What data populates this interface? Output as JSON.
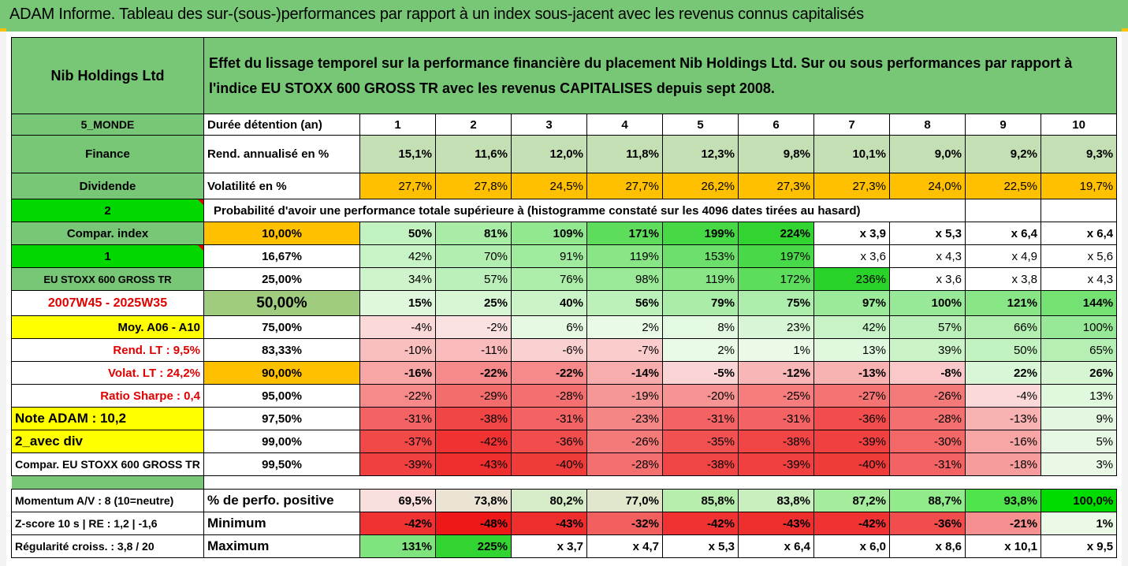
{
  "title": "ADAM Informe. Tableau des sur-(sous-)performances par rapport à un index sous-jacent avec les revenus connus capitalisés",
  "header": {
    "company": "Nib Holdings Ltd",
    "description_line1": "Effet du lissage temporel sur la performance financière du placement Nib Holdings Ltd. Sur ou sous performances par rapport à",
    "description_line2": "l'indice EU STOXX 600 GROSS TR avec les revenus CAPITALISES depuis sept 2008."
  },
  "colors": {
    "title_green": "#77c777",
    "header_green": "#77c777",
    "orange": "#ffc000",
    "yellow": "#ffff00",
    "bright_green": "#00d800",
    "label_red": "#e00000"
  },
  "rows": [
    {
      "left": "5_MONDE",
      "mid": "Durée détention (an)",
      "values": [
        "1",
        "2",
        "3",
        "4",
        "5",
        "6",
        "7",
        "8",
        "9",
        "10"
      ]
    },
    {
      "left": "Finance",
      "mid": "Rend. annualisé en %",
      "values": [
        "15,1%",
        "11,6%",
        "12,0%",
        "11,8%",
        "12,3%",
        "9,8%",
        "10,1%",
        "9,0%",
        "9,2%",
        "9,3%"
      ]
    },
    {
      "left": "Dividende",
      "mid": "Volatilité en %",
      "values": [
        "27,7%",
        "27,8%",
        "24,5%",
        "27,7%",
        "26,2%",
        "27,3%",
        "27,3%",
        "24,0%",
        "22,5%",
        "19,7%"
      ]
    },
    {
      "left": "2",
      "mid": "Probabilité d'avoir une performance totale supérieure à (histogramme constaté sur les 4096 dates tirées au hasard)"
    },
    {
      "left": "Compar. index",
      "mid": "10,00%",
      "values": [
        "50%",
        "81%",
        "109%",
        "171%",
        "199%",
        "224%",
        "x 3,9",
        "x 5,3",
        "x 6,4",
        "x 6,4"
      ]
    },
    {
      "left": "1",
      "mid": "16,67%",
      "values": [
        "42%",
        "70%",
        "91%",
        "119%",
        "153%",
        "197%",
        "x 3,6",
        "x 4,3",
        "x 4,9",
        "x 5,6"
      ]
    },
    {
      "left": "EU STOXX 600 GROSS TR",
      "mid": "25,00%",
      "values": [
        "34%",
        "57%",
        "76%",
        "98%",
        "119%",
        "172%",
        "236%",
        "x 3,6",
        "x 3,8",
        "x 4,3"
      ]
    },
    {
      "left": "2007W45 - 2025W35",
      "mid": "50,00%",
      "values": [
        "15%",
        "25%",
        "40%",
        "56%",
        "79%",
        "75%",
        "97%",
        "100%",
        "121%",
        "144%"
      ]
    },
    {
      "left": "Moy. A06 - A10",
      "mid": "75,00%",
      "values": [
        "-4%",
        "-2%",
        "6%",
        "2%",
        "8%",
        "23%",
        "42%",
        "57%",
        "66%",
        "100%"
      ]
    },
    {
      "left": "Rend. LT :   9,5%",
      "mid": "83,33%",
      "values": [
        "-10%",
        "-11%",
        "-6%",
        "-7%",
        "2%",
        "1%",
        "13%",
        "39%",
        "50%",
        "65%"
      ]
    },
    {
      "left": "Volat. LT :   24,2%",
      "mid": "90,00%",
      "values": [
        "-16%",
        "-22%",
        "-22%",
        "-14%",
        "-5%",
        "-12%",
        "-13%",
        "-8%",
        "22%",
        "26%"
      ]
    },
    {
      "left": "Ratio Sharpe :   0,4",
      "mid": "95,00%",
      "values": [
        "-22%",
        "-29%",
        "-28%",
        "-19%",
        "-20%",
        "-25%",
        "-27%",
        "-26%",
        "-4%",
        "13%"
      ]
    },
    {
      "left": "Note ADAM : 10,2",
      "mid": "97,50%",
      "values": [
        "-31%",
        "-38%",
        "-31%",
        "-23%",
        "-31%",
        "-31%",
        "-36%",
        "-28%",
        "-13%",
        "9%"
      ]
    },
    {
      "left": "2_avec div",
      "mid": "99,00%",
      "values": [
        "-37%",
        "-42%",
        "-36%",
        "-26%",
        "-35%",
        "-38%",
        "-39%",
        "-30%",
        "-16%",
        "5%"
      ]
    },
    {
      "left": "Compar. EU STOXX 600 GROSS TR",
      "mid": "99,50%",
      "values": [
        "-39%",
        "-43%",
        "-40%",
        "-28%",
        "-38%",
        "-39%",
        "-40%",
        "-31%",
        "-18%",
        "3%"
      ]
    },
    {
      "left": "",
      "mid": "",
      "values": []
    },
    {
      "left": "Momentum A/V : 8 (10=neutre)",
      "mid": "% de perfo. positive",
      "values": [
        "69,5%",
        "73,8%",
        "80,2%",
        "77,0%",
        "85,8%",
        "83,8%",
        "87,2%",
        "88,7%",
        "93,8%",
        "100,0%"
      ]
    },
    {
      "left": "Z-score 10 s  |  RE : 1,2  |  -1,6",
      "mid": "Minimum",
      "values": [
        "-42%",
        "-48%",
        "-43%",
        "-32%",
        "-42%",
        "-43%",
        "-42%",
        "-36%",
        "-21%",
        "1%"
      ]
    },
    {
      "left": "Régularité croiss. : 3,8 / 20",
      "mid": "Maximum",
      "values": [
        "131%",
        "225%",
        "x 3,7",
        "x 4,7",
        "x 5,3",
        "x 6,4",
        "x 6,0",
        "x 8,6",
        "x 10,1",
        "x 9,5"
      ]
    }
  ]
}
